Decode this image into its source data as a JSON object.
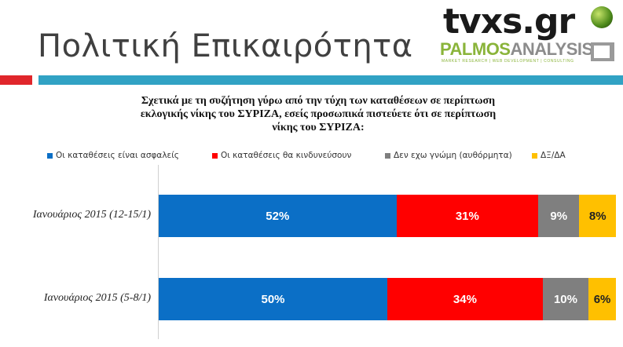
{
  "header": {
    "title": "Πολιτική Επικαιρότητα",
    "logo_tvxs": "tvxs.gr",
    "logo_palmos_a": "PALMOS",
    "logo_palmos_b": "ANALYSIS",
    "logo_tagline": "MARKET RESEARCH | WEB DEVELOPMENT | CONSULTING"
  },
  "colors": {
    "accent_red": "#e0262b",
    "accent_blue": "#31a2c4"
  },
  "chart_data": {
    "type": "bar",
    "orientation": "horizontal-stacked",
    "title": "Σχετικά με τη συζήτηση γύρω από την τύχη των καταθέσεων σε περίπτωση εκλογικής νίκης του ΣΥΡΙΖΑ, εσείς προσωπικά πιστεύετε ότι σε περίπτωση νίκης του ΣΥΡΙΖΑ:",
    "title_lines": [
      "Σχετικά με τη συζήτηση γύρω από την τύχη των καταθέσεων σε περίπτωση",
      "εκλογικής νίκης του ΣΥΡΙΖΑ, εσείς προσωπικά πιστεύετε ότι σε περίπτωση",
      "νίκης του ΣΥΡΙΖΑ:"
    ],
    "categories": [
      "Ιανουάριος 2015 (12-15/1)",
      "Ιανουάριος 2015 (5-8/1)"
    ],
    "series": [
      {
        "name": "Οι καταθέσεις είναι ασφαλείς",
        "color": "#0b6fc6",
        "values": [
          52,
          50
        ]
      },
      {
        "name": "Οι καταθέσεις θα κινδυνεύσουν",
        "color": "#ff0000",
        "values": [
          31,
          34
        ]
      },
      {
        "name": "Δεν εχω γνώμη (αυθόρμητα)",
        "color": "#7f7f7f",
        "values": [
          9,
          10
        ]
      },
      {
        "name": "ΔΞ/ΔΑ",
        "color": "#ffc000",
        "values": [
          8,
          6
        ]
      }
    ],
    "data_labels": [
      [
        "52%",
        "31%",
        "9%",
        "8%"
      ],
      [
        "50%",
        "34%",
        "10%",
        "6%"
      ]
    ],
    "xlim": [
      0,
      100
    ],
    "legend": "top",
    "grid": false
  }
}
